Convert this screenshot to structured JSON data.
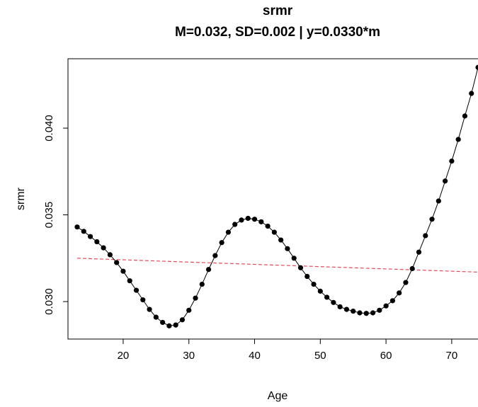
{
  "chart_data": {
    "type": "line",
    "title": "srmr",
    "subtitle": "M=0.032, SD=0.002 | y=0.0330*m",
    "xlabel": "Age",
    "ylabel": "srmr",
    "xlim": [
      11.6,
      75.4
    ],
    "ylim": [
      0.02784,
      0.044
    ],
    "x_ticks": [
      20,
      30,
      40,
      50,
      60,
      70
    ],
    "x_tick_labels": [
      "20",
      "30",
      "40",
      "50",
      "60",
      "70"
    ],
    "y_ticks": [
      0.03,
      0.035,
      0.04
    ],
    "y_tick_labels": [
      "0.030",
      "0.035",
      "0.040"
    ],
    "grid": false,
    "legend": "none",
    "series": [
      {
        "style": "points-and-line",
        "color": "#000000",
        "x": [
          13,
          14,
          15,
          16,
          17,
          18,
          19,
          20,
          21,
          22,
          23,
          24,
          25,
          26,
          27,
          28,
          29,
          30,
          31,
          32,
          33,
          34,
          35,
          36,
          37,
          38,
          39,
          40,
          41,
          42,
          43,
          44,
          45,
          46,
          47,
          48,
          49,
          50,
          51,
          52,
          53,
          54,
          55,
          56,
          57,
          58,
          59,
          60,
          61,
          62,
          63,
          64,
          65,
          66,
          67,
          68,
          69,
          70,
          71,
          72,
          73,
          74
        ],
        "y": [
          0.0343,
          0.03405,
          0.03375,
          0.03345,
          0.0331,
          0.0327,
          0.03225,
          0.03175,
          0.0312,
          0.03065,
          0.0301,
          0.02955,
          0.0291,
          0.0288,
          0.0286,
          0.02865,
          0.02895,
          0.0295,
          0.0302,
          0.031,
          0.03185,
          0.03265,
          0.0334,
          0.034,
          0.03445,
          0.0347,
          0.0348,
          0.03475,
          0.0346,
          0.03435,
          0.034,
          0.03355,
          0.03305,
          0.0325,
          0.03195,
          0.03145,
          0.031,
          0.0306,
          0.03025,
          0.02995,
          0.0297,
          0.02955,
          0.02945,
          0.02935,
          0.02932,
          0.02935,
          0.0295,
          0.02975,
          0.03005,
          0.0305,
          0.0311,
          0.0319,
          0.03285,
          0.0338,
          0.03475,
          0.0358,
          0.03695,
          0.0381,
          0.03935,
          0.0407,
          0.042,
          0.0435
        ]
      },
      {
        "style": "dashed-line",
        "color": "#e8485a",
        "x": [
          13,
          74
        ],
        "y": [
          0.0325,
          0.0317
        ]
      }
    ]
  }
}
